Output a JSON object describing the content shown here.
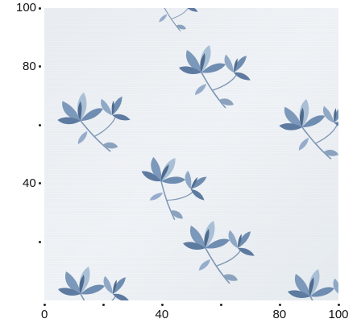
{
  "chart_data": {
    "type": "image",
    "title": "",
    "xlabel": "",
    "ylabel": "",
    "xlim": [
      0,
      100
    ],
    "ylim": [
      0,
      100
    ],
    "x_ticks": [
      0,
      20,
      40,
      60,
      80,
      100
    ],
    "x_tick_labels": [
      "0",
      "",
      "40",
      "",
      "80",
      "100"
    ],
    "y_ticks": [
      100,
      80,
      60,
      40,
      20
    ],
    "y_tick_labels": [
      "100",
      "80",
      "",
      "40",
      ""
    ],
    "grid": false
  },
  "image": {
    "description_colors": {
      "background": "#eef2f5",
      "flower_light": "#a9bfd6",
      "flower_mid": "#7c98ba",
      "flower_dark": "#4e6a8c",
      "leaf": "#8aa2bd"
    }
  }
}
